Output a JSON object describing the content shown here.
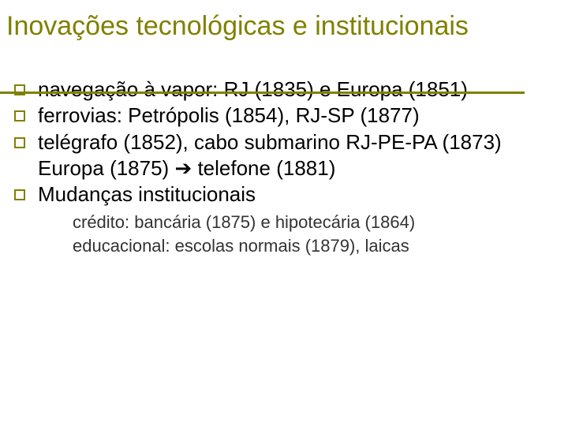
{
  "slide": {
    "title": "Inovações tecnológicas e institucionais",
    "accent_color": "#808000",
    "bg_color": "#ffffff",
    "title_fontsize": 34,
    "bullets": [
      {
        "text": "navegação à vapor: RJ (1835) e Europa (1851)"
      },
      {
        "text": "ferrovias: Petrópolis (1854), RJ-SP (1877)"
      },
      {
        "text": "telégrafo (1852), cabo submarino RJ-PE-PA (1873) Europa (1875) ➔  telefone (1881)"
      },
      {
        "text": "Mudanças institucionais"
      }
    ],
    "bullet_fontsize": 26,
    "sub_items": [
      {
        "text": "crédito: bancária (1875) e hipotecária (1864)"
      },
      {
        "text": "educacional: escolas normais (1879), laicas"
      }
    ],
    "sub_fontsize": 22
  }
}
